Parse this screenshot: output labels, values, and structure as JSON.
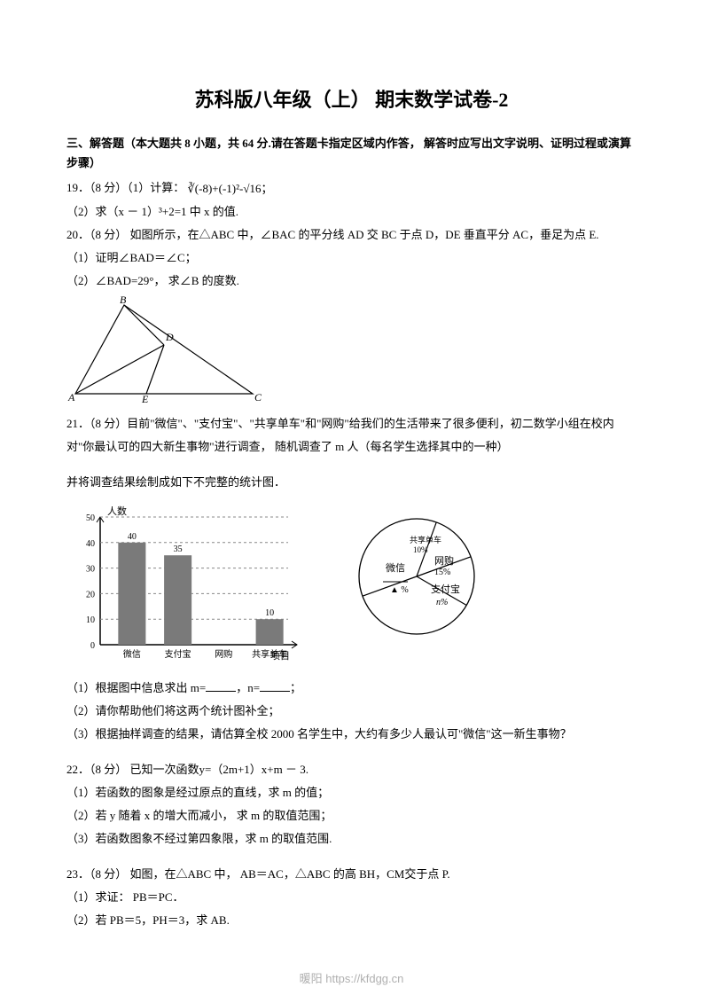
{
  "title": "苏科版八年级（上）  期末数学试卷-2",
  "section_head": "三、解答题（本大题共 8 小题，共 64 分.请在答题卡指定区域内作答，  解答时应写出文字说明、证明过程或演算步骤）",
  "q19": {
    "p1_prefix": "19．（8 分）（1）计算：",
    "formula_text1": "∛(-8)",
    "formula_text2": "+(-1)²",
    "formula_text3": "-√16",
    "p2": "（2）求（x － 1）³+2=1 中 x 的值."
  },
  "q20": {
    "p1": "20．（8 分） 如图所示，在△ABC 中，∠BAC 的平分线 AD 交 BC 于点 D，DE 垂直平分 AC，垂足为点 E.",
    "p2": "（1）证明∠BAD＝∠C；",
    "p3": "（2）∠BAD=29°， 求∠B 的度数.",
    "tri": {
      "A": [
        10,
        110
      ],
      "B": [
        65,
        10
      ],
      "D": [
        110,
        55
      ],
      "C": [
        210,
        110
      ],
      "E": [
        90,
        110
      ],
      "stroke": "#000000"
    },
    "labels": {
      "A": "A",
      "B": "B",
      "C": "C",
      "D": "D",
      "E": "E"
    }
  },
  "q21": {
    "p1": "21．（8 分）目前\"微信\"、\"支付宝\"、\"共享单车\"和\"网购\"给我们的生活带来了很多便利，初二数学小组在校内对\"你最认可的四大新生事物\"进行调查，  随机调查了 m 人（每名学生选择其中的一种）",
    "p2": "并将调查结果绘制成如下不完整的统计图．",
    "subq1_a": "（1）根据图中信息求出 m=",
    "subq1_b": "，n=",
    "subq1_c": "；",
    "subq2": "（2）请你帮助他们将这两个统计图补全；",
    "subq3": "（3）根据抽样调查的结果，请估算全校 2000 名学生中，大约有多少人最认可\"微信\"这一新生事物？"
  },
  "bar_chart": {
    "type": "bar",
    "y_label": "人数",
    "x_label": "项目",
    "categories": [
      "微信",
      "支付宝",
      "网购",
      "共享单车"
    ],
    "values": [
      40,
      35,
      null,
      10
    ],
    "value_labels": [
      "40",
      "35",
      "",
      "10"
    ],
    "y_ticks": [
      0,
      10,
      20,
      30,
      40,
      50
    ],
    "ylim": [
      0,
      50
    ],
    "bar_color": "#7a7a7a",
    "grid_color": "#888888",
    "axis_color": "#000000",
    "bar_width": 0.6,
    "label_fontsize": 11,
    "tick_fontsize": 10
  },
  "pie_chart": {
    "type": "pie",
    "slices": [
      {
        "label": "微信",
        "value": 40,
        "start": 200,
        "sweep": 130
      },
      {
        "label": "支付宝",
        "sub_label": "n%",
        "value": 35,
        "start": 70,
        "sweep": 130
      },
      {
        "label": "网购",
        "sub_label": "15%",
        "value": 15,
        "start": 20,
        "sweep": 50
      },
      {
        "label": "共享单车",
        "sub_label": "10%",
        "value": 10,
        "start": 330,
        "sweep": 50
      }
    ],
    "center_label": "▲  %",
    "stroke": "#000000",
    "fill": "none",
    "slice_labels": {
      "wechat": "微信",
      "alipay": "支付宝",
      "alipay_pct": "n%",
      "bike": "共享单车",
      "bike_pct": "10%",
      "shop": "网购",
      "shop_pct": "15%",
      "blank": "▲  %"
    }
  },
  "q22": {
    "p1": "22．（8 分）  已知一次函数y=（2m+1）x+m － 3.",
    "p2": "（1）若函数的图象是经过原点的直线，求 m 的值；",
    "p3": "（2）若 y 随着 x 的增大而减小， 求 m 的取值范围；",
    "p4": "（3）若函数图象不经过第四象限，求 m 的取值范围."
  },
  "q23": {
    "p1": "23．（8 分）  如图，在△ABC 中，  AB＝AC，△ABC 的高 BH，CM交于点 P.",
    "p2": "（1）求证：  PB＝PC．",
    "p3": "（2）若 PB＝5，PH＝3，求 AB."
  },
  "watermark": "暖阳 https://kfdgg.cn"
}
